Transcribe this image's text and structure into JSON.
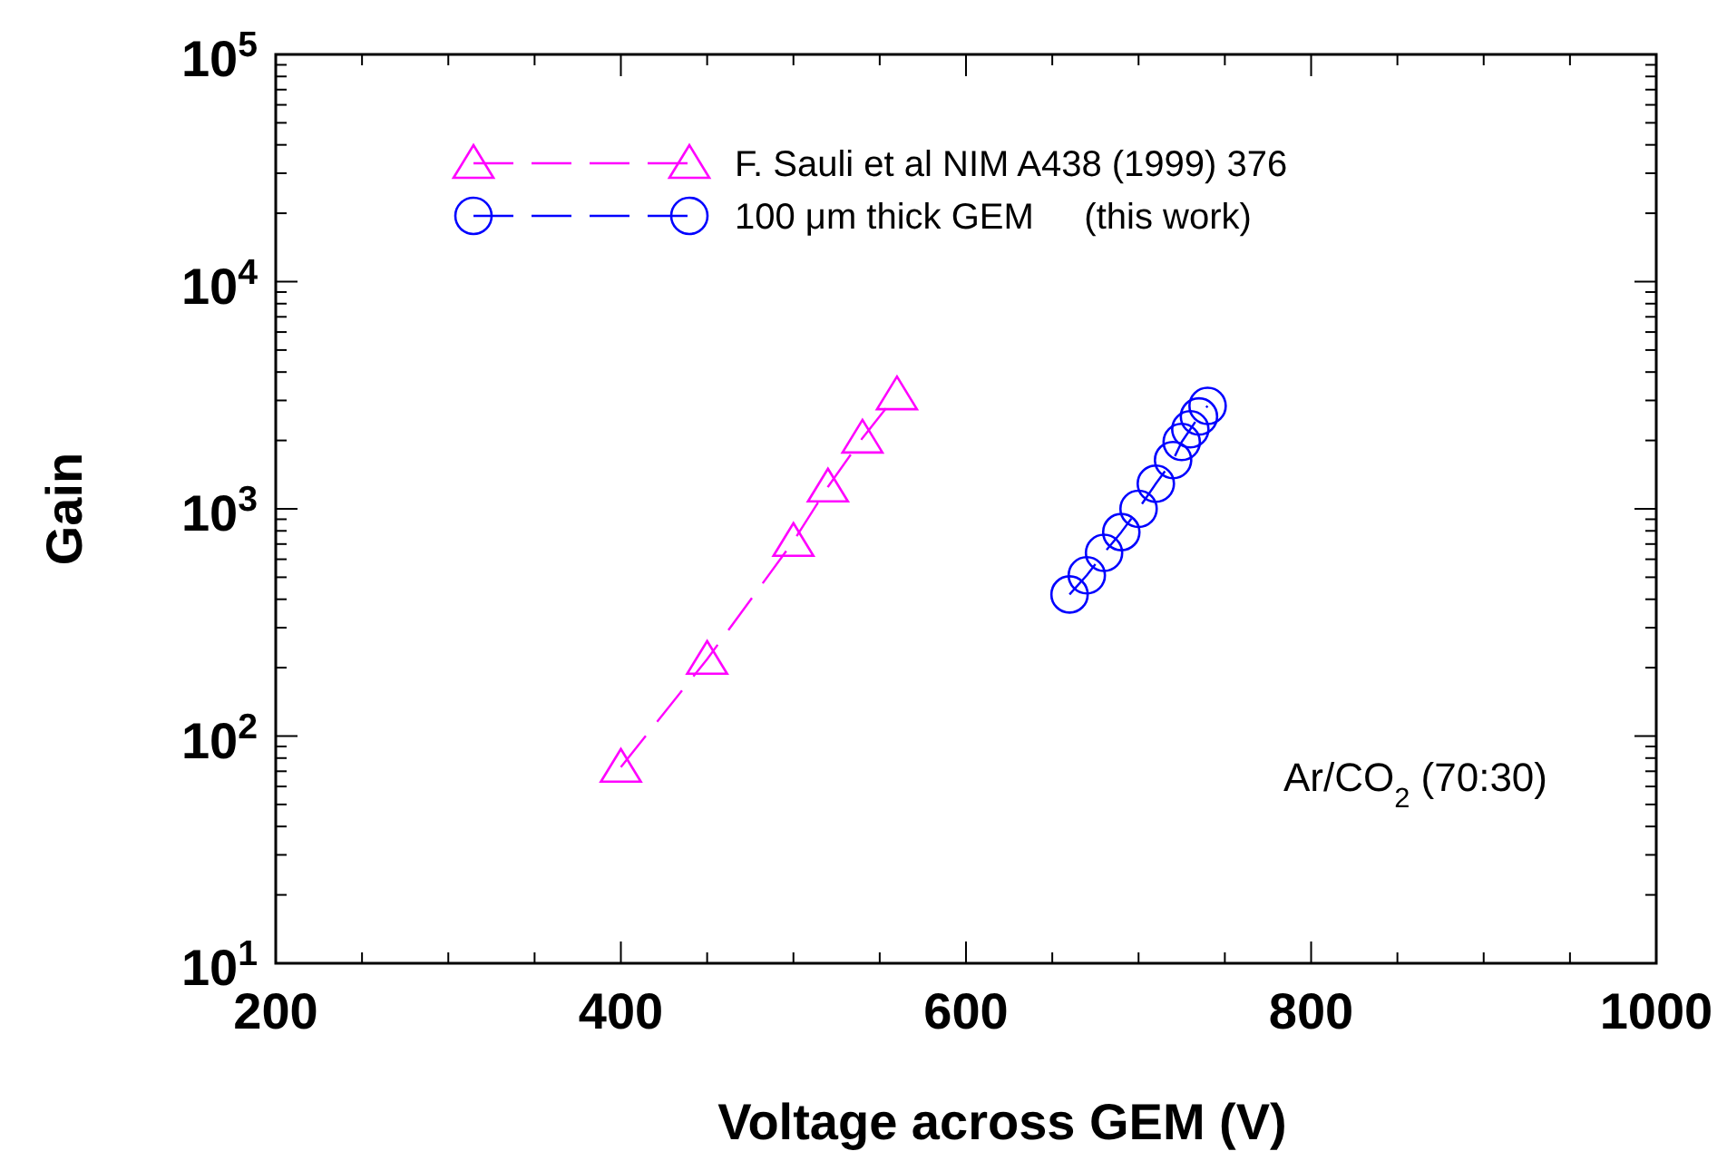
{
  "chart_data": {
    "type": "line",
    "xlabel": "Voltage across GEM (V)",
    "ylabel": "Gain",
    "log": "y",
    "xlim": [
      200,
      1000
    ],
    "ylim": [
      10,
      100000
    ],
    "xticks": [
      200,
      400,
      600,
      800,
      1000
    ],
    "yticks": [
      {
        "value": 10,
        "label": "10$^{1}$"
      },
      {
        "value": 100,
        "label": "10$^{2}$"
      },
      {
        "value": 1000,
        "label": "10$^{3}$"
      },
      {
        "value": 10000,
        "label": "10$^{4}$"
      },
      {
        "value": 100000,
        "label": "10$^{5}$"
      }
    ],
    "grid": false,
    "legend": "top left",
    "line_style": "dashed",
    "series": [
      {
        "name": "F. Sauli et al NIM A438 (1999) 376",
        "color": "#ff00ff",
        "marker": "triangle",
        "x": [
          400,
          450,
          500,
          520,
          540,
          560
        ],
        "values": [
          73,
          218,
          720,
          1250,
          2050,
          3180
        ]
      },
      {
        "name": "100 μm thick GEM     (this work)",
        "color": "#0000ff",
        "marker": "circle",
        "x": [
          660,
          670,
          680,
          690,
          700,
          710,
          720,
          725,
          730,
          735,
          740
        ],
        "values": [
          420,
          510,
          640,
          790,
          1000,
          1290,
          1640,
          1970,
          2240,
          2550,
          2840
        ]
      }
    ],
    "annotations": [
      "Ar/CO$_{2}$ (70:30)"
    ]
  }
}
